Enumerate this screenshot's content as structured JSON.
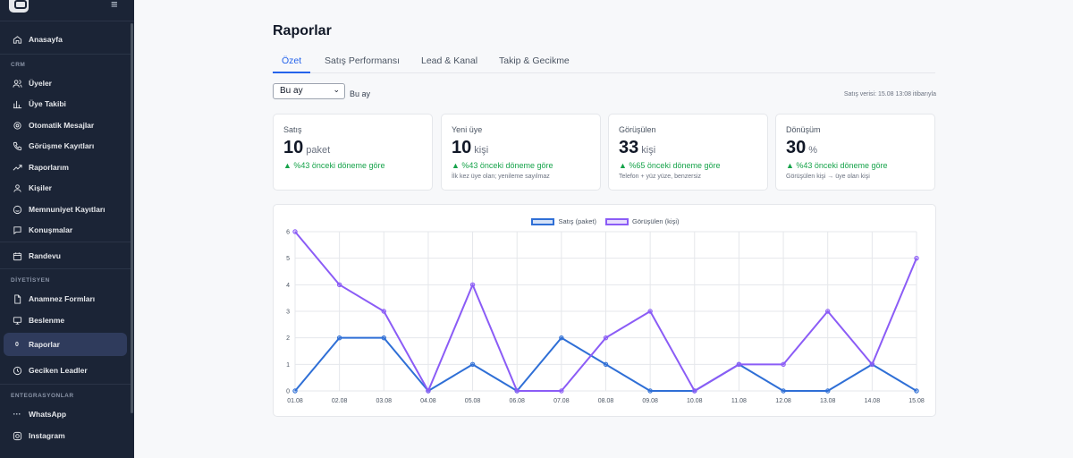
{
  "sidebar": {
    "sections": {
      "crm": "CRM",
      "diyetisyen": "DİYETİSYEN",
      "entegrasyonlar": "ENTEGRASYONLAR"
    },
    "items": [
      {
        "label": "Anasayfa",
        "icon": "home-icon"
      },
      {
        "label": "Üyeler",
        "icon": "users-icon"
      },
      {
        "label": "Üye Takibi",
        "icon": "bar-chart-icon"
      },
      {
        "label": "Otomatik Mesajlar",
        "icon": "gear-icon"
      },
      {
        "label": "Görüşme Kayıtları",
        "icon": "phone-icon"
      },
      {
        "label": "Raporlarım",
        "icon": "trend-icon"
      },
      {
        "label": "Kişiler",
        "icon": "person-icon"
      },
      {
        "label": "Memnuniyet Kayıtları",
        "icon": "smile-icon"
      },
      {
        "label": "Konuşmalar",
        "icon": "chat-icon"
      },
      {
        "label": "Randevu",
        "icon": "calendar-icon"
      },
      {
        "label": "Anamnez Formları",
        "icon": "file-icon"
      },
      {
        "label": "Beslenme",
        "icon": "monitor-icon"
      },
      {
        "label": "Raporlar",
        "icon": "report-icon"
      },
      {
        "label": "Geciken Leadler",
        "icon": "clock-icon"
      },
      {
        "label": "WhatsApp",
        "icon": "whatsapp-icon"
      },
      {
        "label": "Instagram",
        "icon": "instagram-icon"
      }
    ]
  },
  "page": {
    "title": "Raporlar",
    "tabs": [
      "Özet",
      "Satış Performansı",
      "Lead & Kanal",
      "Takip & Gecikme"
    ],
    "period_select": "Bu ay",
    "period_label": "Bu ay",
    "data_note": "Satış verisi: 15.08 13:08 itibarıyla"
  },
  "cards": [
    {
      "title": "Satış",
      "value": "10",
      "unit": "paket",
      "change": "▲ %43 önceki döneme göre",
      "note": ""
    },
    {
      "title": "Yeni üye",
      "value": "10",
      "unit": "kişi",
      "change": "▲ %43 önceki döneme göre",
      "note": "İlk kez üye olan; yenileme sayılmaz"
    },
    {
      "title": "Görüşülen",
      "value": "33",
      "unit": "kişi",
      "change": "▲ %65 önceki döneme göre",
      "note": "Telefon + yüz yüze, benzersiz"
    },
    {
      "title": "Dönüşüm",
      "value": "30",
      "unit": "%",
      "change": "▲ %43 önceki döneme göre",
      "note": "Görüşülen kişi → üye olan kişi"
    }
  ],
  "colors": {
    "accent": "#2563eb",
    "positive": "#16a34a",
    "sidebar_bg": "#1b2436",
    "series_satis": "#2f6fd6",
    "series_gorusulen": "#8b5cf6"
  },
  "chart_data": {
    "type": "line",
    "x": [
      "01.08",
      "02.08",
      "03.08",
      "04.08",
      "05.08",
      "06.08",
      "07.08",
      "08.08",
      "09.08",
      "10.08",
      "11.08",
      "12.08",
      "13.08",
      "14.08",
      "15.08"
    ],
    "ylim": [
      0,
      6
    ],
    "yticks": [
      0,
      1,
      2,
      3,
      4,
      5,
      6
    ],
    "grid": true,
    "legend": "top-center",
    "series": [
      {
        "name": "Satış (paket)",
        "color": "#2f6fd6",
        "values": [
          0,
          2,
          2,
          0,
          1,
          0,
          2,
          1,
          0,
          0,
          1,
          0,
          0,
          1,
          0
        ]
      },
      {
        "name": "Görüşülen (kişi)",
        "color": "#8b5cf6",
        "values": [
          6,
          4,
          3,
          0,
          4,
          0,
          0,
          2,
          3,
          0,
          1,
          1,
          3,
          1,
          5
        ]
      }
    ]
  }
}
